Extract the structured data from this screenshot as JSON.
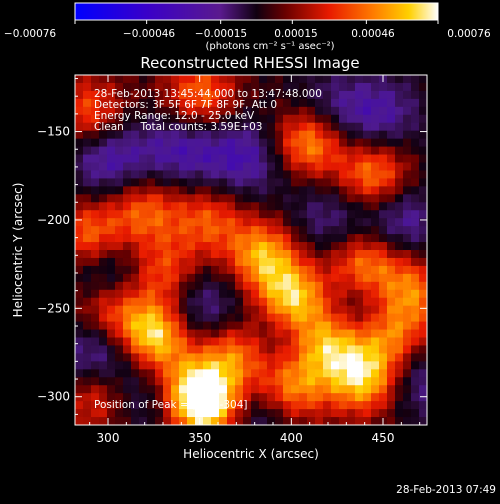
{
  "chart_data": {
    "type": "heatmap",
    "title": "Reconstructed RHESSI Image",
    "xlabel": "Heliocentric X (arcsec)",
    "ylabel": "Heliocentric Y (arcsec)",
    "xlim": [
      282,
      474
    ],
    "ylim": [
      -316,
      -118
    ],
    "x_ticks": [
      300,
      350,
      400,
      450
    ],
    "y_ticks": [
      -150,
      -200,
      -250,
      -300
    ],
    "x_tick_labels": [
      "300",
      "350",
      "400",
      "450"
    ],
    "y_tick_labels": [
      "−150",
      "−200",
      "−250",
      "−300"
    ],
    "colorbar": {
      "min": -0.00076,
      "max": 0.00076,
      "tick_labels": [
        "−0.00076",
        "−0.00046",
        "−0.00015",
        "0.00015",
        "0.00046",
        "0.00076"
      ],
      "ticks": [
        -0.00076,
        -0.00046,
        -0.00015,
        0.00015,
        0.00046,
        0.00076
      ],
      "units_label": "(photons cm⁻² s⁻¹ asec⁻²)"
    },
    "info_lines": [
      "28-Feb-2013 13:45:44.000 to 13:47:48.000",
      "Detectors: 3F 5F 6F 7F 8F 9F, Att 0",
      "Energy Range: 12.0 - 25.0 keV",
      "Clean     Total counts: 3.59E+03"
    ],
    "peak_label": "Position of Peak = [354,-304]",
    "peak": [
      354,
      -304
    ],
    "hot_spots": [
      {
        "x": 410,
        "y": -155,
        "level": 0.85
      },
      {
        "x": 445,
        "y": -175,
        "level": 0.7
      },
      {
        "x": 290,
        "y": -210,
        "level": 0.65
      },
      {
        "x": 320,
        "y": -195,
        "level": 0.55
      },
      {
        "x": 355,
        "y": -200,
        "level": 0.5
      },
      {
        "x": 385,
        "y": -220,
        "level": 0.75
      },
      {
        "x": 440,
        "y": -225,
        "level": 0.7
      },
      {
        "x": 465,
        "y": -240,
        "level": 0.6
      },
      {
        "x": 330,
        "y": -230,
        "level": 0.55
      },
      {
        "x": 400,
        "y": -245,
        "level": 0.9
      },
      {
        "x": 300,
        "y": -250,
        "level": 0.6
      },
      {
        "x": 325,
        "y": -265,
        "level": 1.0
      },
      {
        "x": 370,
        "y": -275,
        "level": 0.7
      },
      {
        "x": 420,
        "y": -270,
        "level": 0.75
      },
      {
        "x": 455,
        "y": -265,
        "level": 0.65
      },
      {
        "x": 345,
        "y": -295,
        "level": 0.6
      },
      {
        "x": 400,
        "y": -295,
        "level": 0.7
      },
      {
        "x": 440,
        "y": -290,
        "level": 0.85
      },
      {
        "x": 355,
        "y": -305,
        "level": 1.0
      },
      {
        "x": 295,
        "y": -300,
        "level": 0.5
      },
      {
        "x": 350,
        "y": -130,
        "level": 0.6
      },
      {
        "x": 290,
        "y": -140,
        "level": 0.55
      }
    ],
    "cold_spots": [
      {
        "x": 300,
        "y": -165,
        "level": 0.9
      },
      {
        "x": 340,
        "y": -160,
        "level": 0.8
      },
      {
        "x": 375,
        "y": -165,
        "level": 0.85
      },
      {
        "x": 450,
        "y": -140,
        "level": 0.7
      },
      {
        "x": 460,
        "y": -200,
        "level": 0.8
      },
      {
        "x": 420,
        "y": -200,
        "level": 0.6
      },
      {
        "x": 300,
        "y": -230,
        "level": 0.9
      },
      {
        "x": 350,
        "y": -250,
        "level": 0.8
      },
      {
        "x": 440,
        "y": -250,
        "level": 0.6
      },
      {
        "x": 295,
        "y": -275,
        "level": 0.9
      },
      {
        "x": 390,
        "y": -265,
        "level": 0.6
      },
      {
        "x": 470,
        "y": -290,
        "level": 0.7
      },
      {
        "x": 320,
        "y": -300,
        "level": 0.6
      },
      {
        "x": 380,
        "y": -310,
        "level": 0.7
      },
      {
        "x": 420,
        "y": -140,
        "level": 0.7
      }
    ]
  },
  "footer": {
    "timestamp": "28-Feb-2013 07:49"
  }
}
